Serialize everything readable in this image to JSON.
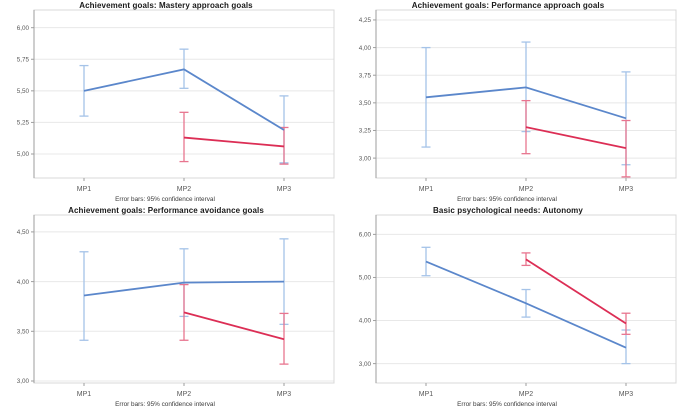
{
  "page": {
    "background": "#ffffff",
    "grid_layout": "2x2"
  },
  "colors": {
    "series_blue": "#5b87cb",
    "series_blue_ci": "#a5c3e8",
    "series_red": "#dc2e55",
    "series_red_ci": "#e8758f",
    "gridline": "#e8e8e8",
    "plot_border": "#d8d8d8",
    "axis_line": "#9e9e9e",
    "tick_label": "#595959",
    "title_text": "#1a1a1a",
    "caption_text": "#3a3a3a"
  },
  "chart_data": [
    {
      "type": "line",
      "title": "Achievement goals: Mastery approach goals",
      "caption": "Error bars: 95% confidence interval",
      "categories": [
        "MP1",
        "MP2",
        "MP3"
      ],
      "xlabel": "",
      "ylabel": "",
      "ylim": [
        4.81,
        6.14
      ],
      "yticks": [
        6.0,
        5.75,
        5.5,
        5.25,
        5.0
      ],
      "ytick_labels": [
        "6,00",
        "5,75",
        "5,50",
        "5,25",
        "5,00"
      ],
      "grid": true,
      "legend": "none",
      "error_bars": "95% confidence interval",
      "series": [
        {
          "name": "blue",
          "color": "#5b87cb",
          "ci_color": "#a5c3e8",
          "values": [
            5.5,
            5.67,
            5.19
          ],
          "ci_low": [
            5.3,
            5.52,
            4.93
          ],
          "ci_high": [
            5.7,
            5.83,
            5.46
          ]
        },
        {
          "name": "red",
          "color": "#dc2e55",
          "ci_color": "#e8758f",
          "values": [
            null,
            5.13,
            5.06
          ],
          "ci_low": [
            null,
            4.94,
            4.92
          ],
          "ci_high": [
            null,
            5.33,
            5.21
          ]
        }
      ]
    },
    {
      "type": "line",
      "title": "Achievement goals: Performance approach goals",
      "caption": "Error bars: 95% confidence interval",
      "categories": [
        "MP1",
        "MP2",
        "MP3"
      ],
      "xlabel": "",
      "ylabel": "",
      "ylim": [
        2.82,
        4.34
      ],
      "yticks": [
        4.25,
        4.0,
        3.75,
        3.5,
        3.25,
        3.0
      ],
      "ytick_labels": [
        "4,25",
        "4,00",
        "3,75",
        "3,50",
        "3,25",
        "3,00"
      ],
      "grid": true,
      "legend": "none",
      "error_bars": "95% confidence interval",
      "series": [
        {
          "name": "blue",
          "color": "#5b87cb",
          "ci_color": "#a5c3e8",
          "values": [
            3.55,
            3.64,
            3.36
          ],
          "ci_low": [
            3.1,
            3.24,
            2.94
          ],
          "ci_high": [
            4.0,
            4.05,
            3.78
          ]
        },
        {
          "name": "red",
          "color": "#dc2e55",
          "ci_color": "#e8758f",
          "values": [
            null,
            3.28,
            3.09
          ],
          "ci_low": [
            null,
            3.04,
            2.83
          ],
          "ci_high": [
            null,
            3.52,
            3.34
          ]
        }
      ]
    },
    {
      "type": "line",
      "title": "Achievement goals: Performance avoidance goals",
      "caption": "Error bars: 95% confidence interval",
      "categories": [
        "MP1",
        "MP2",
        "MP3"
      ],
      "xlabel": "",
      "ylabel": "",
      "ylim": [
        2.98,
        4.67
      ],
      "yticks": [
        4.5,
        4.0,
        3.5,
        3.0
      ],
      "ytick_labels": [
        "4,50",
        "4,00",
        "3,50",
        "3,00"
      ],
      "grid": true,
      "legend": "none",
      "error_bars": "95% confidence interval",
      "series": [
        {
          "name": "blue",
          "color": "#5b87cb",
          "ci_color": "#a5c3e8",
          "values": [
            3.86,
            3.99,
            4.0
          ],
          "ci_low": [
            3.41,
            3.65,
            3.57
          ],
          "ci_high": [
            4.3,
            4.33,
            4.43
          ]
        },
        {
          "name": "red",
          "color": "#dc2e55",
          "ci_color": "#e8758f",
          "values": [
            null,
            3.69,
            3.42
          ],
          "ci_low": [
            null,
            3.41,
            3.17
          ],
          "ci_high": [
            null,
            3.97,
            3.68
          ]
        }
      ]
    },
    {
      "type": "line",
      "title": "Basic psychological needs: Autonomy",
      "caption": "Error bars: 95% confidence interval",
      "categories": [
        "MP1",
        "MP2",
        "MP3"
      ],
      "xlabel": "",
      "ylabel": "",
      "ylim": [
        2.55,
        6.45
      ],
      "yticks": [
        6.0,
        5.0,
        4.0,
        3.0
      ],
      "ytick_labels": [
        "6,00",
        "5,00",
        "4,00",
        "3,00"
      ],
      "grid": true,
      "legend": "none",
      "error_bars": "95% confidence interval",
      "series": [
        {
          "name": "blue",
          "color": "#5b87cb",
          "ci_color": "#a5c3e8",
          "values": [
            5.37,
            4.4,
            3.37
          ],
          "ci_low": [
            5.04,
            4.08,
            3.0
          ],
          "ci_high": [
            5.7,
            4.72,
            3.78
          ]
        },
        {
          "name": "red",
          "color": "#dc2e55",
          "ci_color": "#e8758f",
          "values": [
            null,
            5.42,
            3.93
          ],
          "ci_low": [
            null,
            5.28,
            3.68
          ],
          "ci_high": [
            null,
            5.57,
            4.17
          ]
        }
      ]
    }
  ]
}
